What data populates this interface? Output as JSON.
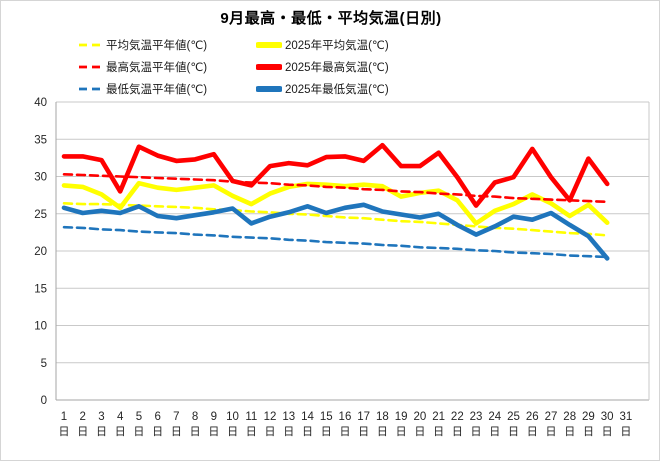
{
  "chart_data": {
    "type": "line",
    "title": "9月最高・最低・平均気温(日別)",
    "x_unit": "日",
    "categories": [
      1,
      2,
      3,
      4,
      5,
      6,
      7,
      8,
      9,
      10,
      11,
      12,
      13,
      14,
      15,
      16,
      17,
      18,
      19,
      20,
      21,
      22,
      23,
      24,
      25,
      26,
      27,
      28,
      29,
      30,
      31
    ],
    "ylim": [
      0,
      40
    ],
    "ytick_step": 5,
    "grid": true,
    "legend_position": "top-left",
    "series": [
      {
        "name": "平均気温平年値(℃)",
        "style": "dashed",
        "color": "#FFFF00",
        "values": [
          26.4,
          26.3,
          26.3,
          26.2,
          26.1,
          26.0,
          25.9,
          25.8,
          25.6,
          25.5,
          25.3,
          25.2,
          25.0,
          24.9,
          24.7,
          24.5,
          24.4,
          24.2,
          24.0,
          23.9,
          23.7,
          23.5,
          23.3,
          23.1,
          23.0,
          22.8,
          22.6,
          22.4,
          22.3,
          22.1,
          null
        ]
      },
      {
        "name": "2025年平均気温(℃)",
        "style": "solid",
        "color": "#FFFF00",
        "values": [
          28.8,
          28.6,
          27.6,
          25.8,
          29.1,
          28.5,
          28.2,
          28.5,
          28.8,
          27.4,
          26.3,
          27.7,
          28.6,
          29.0,
          28.9,
          28.7,
          28.9,
          28.7,
          27.3,
          27.8,
          28.1,
          26.8,
          23.7,
          25.4,
          26.3,
          27.6,
          26.4,
          24.7,
          26.2,
          23.8,
          null
        ]
      },
      {
        "name": "最高気温平年値(℃)",
        "style": "dashed",
        "color": "#FF0000",
        "values": [
          30.3,
          30.2,
          30.1,
          30.0,
          29.9,
          29.8,
          29.7,
          29.6,
          29.5,
          29.3,
          29.2,
          29.1,
          28.9,
          28.8,
          28.6,
          28.5,
          28.3,
          28.2,
          28.0,
          27.9,
          27.7,
          27.6,
          27.4,
          27.3,
          27.1,
          27.0,
          26.9,
          26.8,
          26.7,
          26.6,
          null
        ]
      },
      {
        "name": "2025年最高気温(℃)",
        "style": "solid",
        "color": "#FF0000",
        "values": [
          32.7,
          32.7,
          32.2,
          28.0,
          34.0,
          32.8,
          32.1,
          32.3,
          33.0,
          29.4,
          28.8,
          31.4,
          31.8,
          31.5,
          32.6,
          32.7,
          32.1,
          34.2,
          31.4,
          31.4,
          33.2,
          29.9,
          26.1,
          29.2,
          29.9,
          33.7,
          29.9,
          26.8,
          32.4,
          29.0,
          null
        ]
      },
      {
        "name": "最低気温平年値(℃)",
        "style": "dashed",
        "color": "#1F75BC",
        "values": [
          23.2,
          23.1,
          22.9,
          22.8,
          22.6,
          22.5,
          22.4,
          22.2,
          22.1,
          21.9,
          21.8,
          21.7,
          21.5,
          21.4,
          21.2,
          21.1,
          21.0,
          20.8,
          20.7,
          20.5,
          20.4,
          20.3,
          20.1,
          20.0,
          19.8,
          19.7,
          19.6,
          19.4,
          19.3,
          19.2,
          null
        ]
      },
      {
        "name": "2025年最低気温(℃)",
        "style": "solid",
        "color": "#1F75BC",
        "values": [
          25.8,
          25.1,
          25.4,
          25.1,
          26.0,
          24.7,
          24.4,
          24.8,
          25.2,
          25.7,
          23.7,
          24.6,
          25.2,
          26.0,
          25.1,
          25.8,
          26.2,
          25.3,
          24.9,
          24.5,
          25.0,
          23.5,
          22.2,
          23.3,
          24.6,
          24.2,
          25.1,
          23.5,
          22.0,
          19.0,
          null
        ]
      }
    ]
  },
  "axis": {
    "y_ticks": [
      0,
      5,
      10,
      15,
      20,
      25,
      30,
      35,
      40
    ]
  },
  "style": {
    "grid_color": "#C9C9C9",
    "axis_color": "#A6A6A6",
    "tick_text_color": "#262626"
  }
}
